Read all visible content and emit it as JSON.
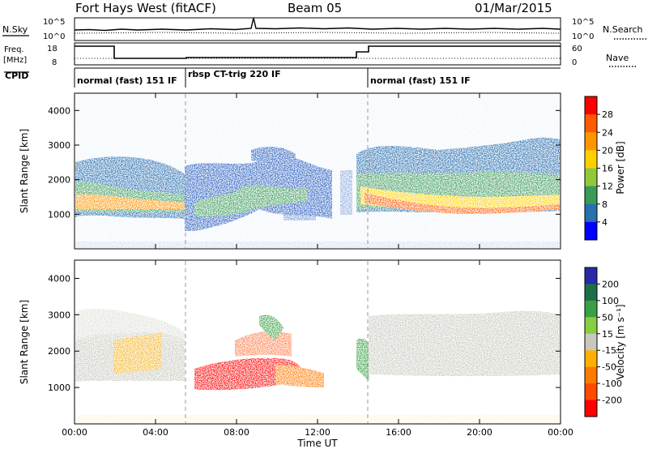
{
  "header": {
    "station": "Fort Hays West (fitACF)",
    "beam": "Beam 05",
    "date": "01/Mar/2015"
  },
  "status_panels": {
    "noise": {
      "left_label": "N.Sky",
      "right_label": "N.Search",
      "left_ticks": [
        "10^5",
        "10^0"
      ],
      "right_ticks": [
        "10^5",
        "10^0"
      ]
    },
    "frequency": {
      "left_label_line1": "Freq.",
      "left_label_line2": "[MHz]",
      "right_label": "Nave",
      "left_ticks": [
        "18",
        "8"
      ],
      "right_ticks": [
        "60",
        "0"
      ]
    },
    "cpid": {
      "label": "CPID",
      "segments": [
        {
          "name": "normal (fast) 151 IF",
          "start_hour": 0.0,
          "end_hour": 5.5
        },
        {
          "name": "rbsp CT-trig 220 IF",
          "start_hour": 5.5,
          "end_hour": 14.5
        },
        {
          "name": "normal (fast) 151 IF",
          "start_hour": 14.5,
          "end_hour": 24.0
        }
      ]
    }
  },
  "chart_data": [
    {
      "type": "heatmap",
      "quantity": "power",
      "ylabel": "Slant Range [km]",
      "ylim": [
        0,
        4500
      ],
      "yticks": [
        1000,
        2000,
        3000,
        4000
      ],
      "xlim_hours": [
        0,
        24
      ],
      "colorbar": {
        "label": "Power [dB]",
        "ticks": [
          "28",
          "24",
          "20",
          "16",
          "12",
          "8",
          "4"
        ],
        "colors": [
          "#ff0000",
          "#ff5a00",
          "#ff9600",
          "#ffd000",
          "#8fc93a",
          "#3a9a5a",
          "#2a6fb0",
          "#0000ff"
        ]
      }
    },
    {
      "type": "heatmap",
      "quantity": "velocity",
      "ylabel": "Slant Range [km]",
      "ylim": [
        0,
        4500
      ],
      "yticks": [
        1000,
        2000,
        3000,
        4000
      ],
      "xlim_hours": [
        0,
        24
      ],
      "xlabel": "Time UT",
      "xticks": [
        "00:00",
        "04:00",
        "08:00",
        "12:00",
        "16:00",
        "20:00",
        "00:00"
      ],
      "colorbar": {
        "label": "Velocity [m s⁻¹]",
        "ticks": [
          "200",
          "100",
          "50",
          "15",
          "-15",
          "-50",
          "-100",
          "-200"
        ],
        "colors": [
          "#2a2aa8",
          "#1f6e4a",
          "#3aa043",
          "#86cf3e",
          "#c8c8c0",
          "#ffb000",
          "#ff7a00",
          "#ff4a00",
          "#ff0000"
        ]
      }
    }
  ]
}
